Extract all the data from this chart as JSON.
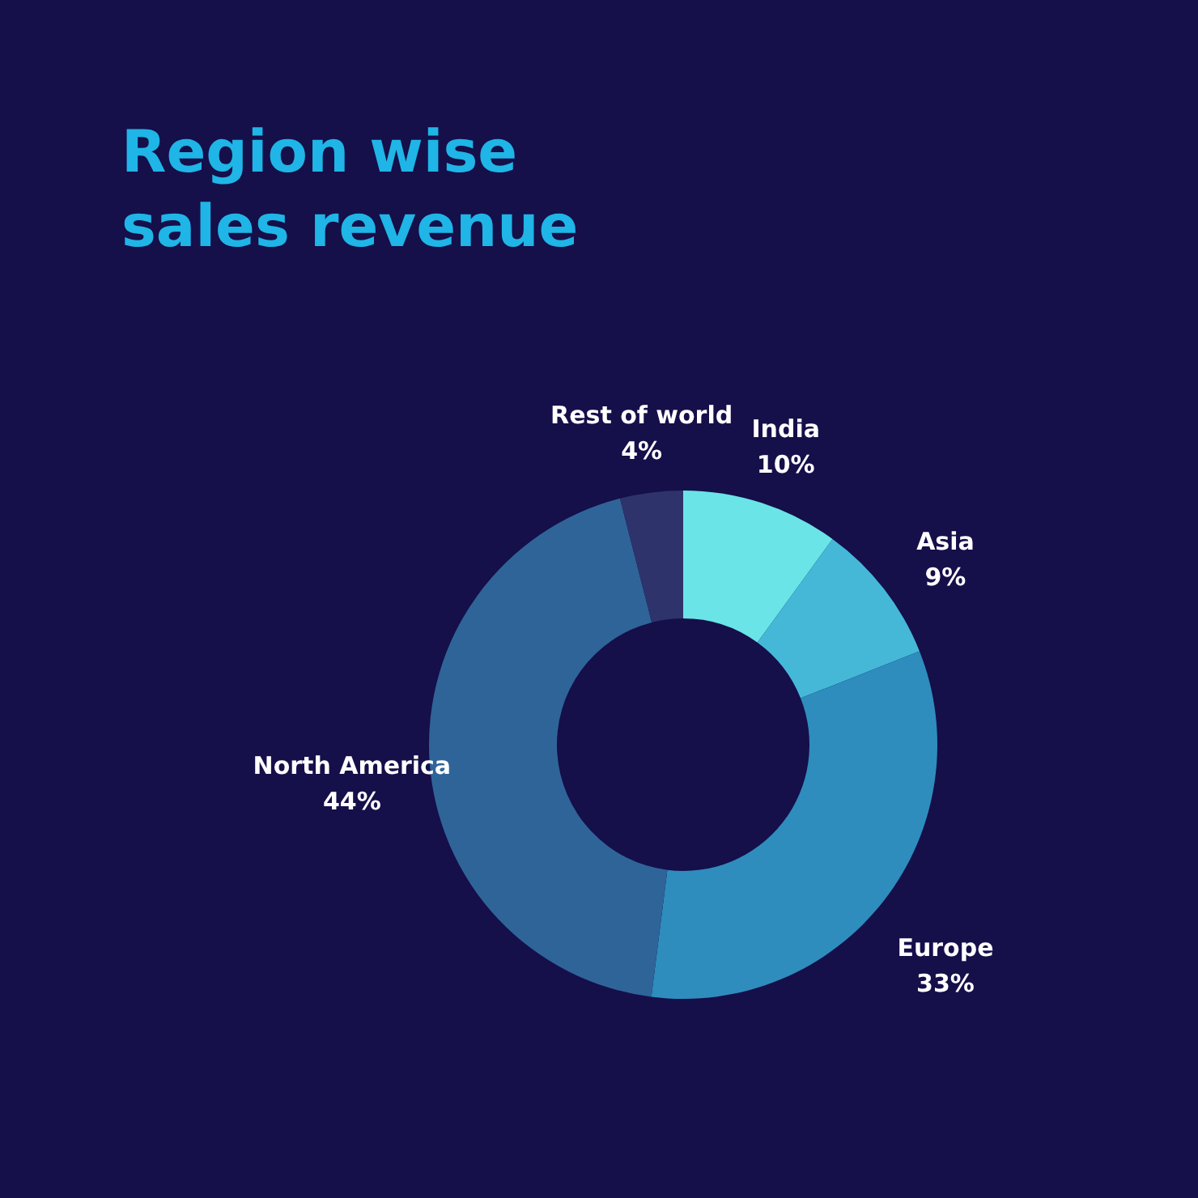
{
  "chart_data": {
    "type": "donut",
    "title": "Region wise sales revenue",
    "categories": [
      "India",
      "Asia",
      "Europe",
      "North America",
      "Rest of world"
    ],
    "values": [
      10,
      9,
      33,
      44,
      4
    ],
    "value_labels": [
      "10%",
      "9%",
      "33%",
      "44%",
      "4%"
    ],
    "colors": [
      "#6ae4e6",
      "#45b8d8",
      "#2e8dbd",
      "#2f6499",
      "#2e336b"
    ]
  }
}
